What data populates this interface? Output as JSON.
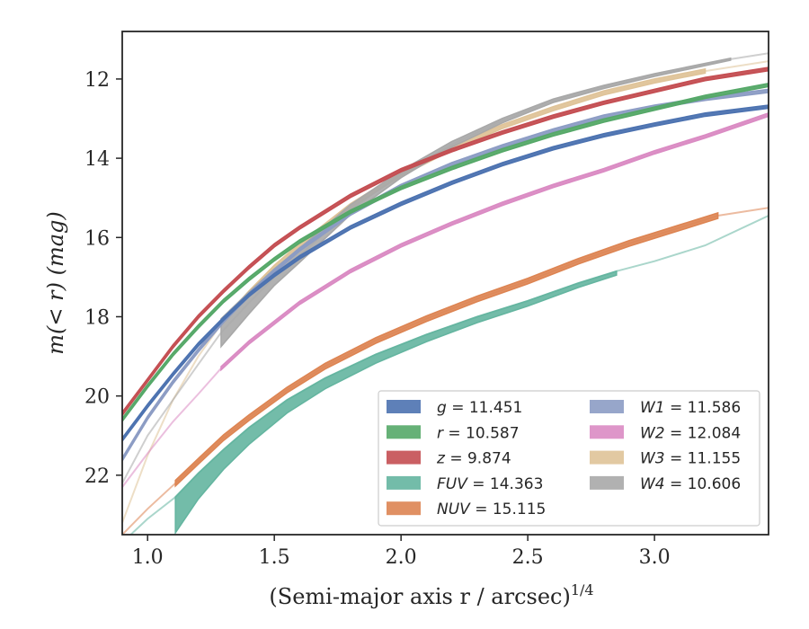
{
  "chart_data": {
    "type": "line",
    "xlabel": "(Semi-major axis r / arcsec)",
    "xlabel_superscript": "1/4",
    "ylabel": "m(< r) (mag)",
    "xlim": [
      0.9,
      3.45
    ],
    "ylim": [
      23.5,
      10.8
    ],
    "y_inverted": true,
    "x_ticks": [
      1.0,
      1.5,
      2.0,
      2.5,
      3.0
    ],
    "x_tick_labels": [
      "1.0",
      "1.5",
      "2.0",
      "2.5",
      "3.0"
    ],
    "y_ticks": [
      12,
      14,
      16,
      18,
      20,
      22
    ],
    "y_tick_labels": [
      "12",
      "14",
      "16",
      "18",
      "20",
      "22"
    ],
    "grid": false,
    "legend_position": "lower-right",
    "series": [
      {
        "label_var": "g",
        "label_value": "11.451",
        "color": "#4c72b0",
        "x": [
          0.9,
          1.0,
          1.1,
          1.2,
          1.3,
          1.4,
          1.5,
          1.6,
          1.8,
          2.0,
          2.2,
          2.4,
          2.6,
          2.8,
          3.0,
          3.2,
          3.45
        ],
        "y": [
          21.1,
          20.25,
          19.45,
          18.7,
          18.05,
          17.45,
          16.95,
          16.5,
          15.75,
          15.15,
          14.62,
          14.15,
          13.75,
          13.42,
          13.15,
          12.9,
          12.7
        ],
        "band": 0.04,
        "solid_x": [
          0.9,
          3.45
        ]
      },
      {
        "label_var": "r",
        "label_value": "10.587",
        "color": "#55a868",
        "x": [
          0.9,
          1.0,
          1.1,
          1.2,
          1.3,
          1.4,
          1.5,
          1.6,
          1.8,
          2.0,
          2.2,
          2.4,
          2.6,
          2.8,
          3.0,
          3.2,
          3.45
        ],
        "y": [
          20.6,
          19.75,
          18.95,
          18.25,
          17.6,
          17.05,
          16.55,
          16.1,
          15.35,
          14.75,
          14.25,
          13.8,
          13.4,
          13.05,
          12.75,
          12.45,
          12.15
        ],
        "band": 0.04,
        "solid_x": [
          0.9,
          3.45
        ]
      },
      {
        "label_var": "z",
        "label_value": "9.874",
        "color": "#c44e52",
        "x": [
          0.9,
          1.0,
          1.1,
          1.2,
          1.3,
          1.4,
          1.5,
          1.6,
          1.8,
          2.0,
          2.2,
          2.4,
          2.6,
          2.8,
          3.0,
          3.2,
          3.45
        ],
        "y": [
          20.45,
          19.6,
          18.75,
          18.0,
          17.35,
          16.75,
          16.2,
          15.75,
          14.95,
          14.3,
          13.8,
          13.35,
          12.95,
          12.6,
          12.3,
          12.0,
          11.75
        ],
        "band": 0.04,
        "solid_x": [
          0.9,
          3.45
        ]
      },
      {
        "label_var": "FUV",
        "label_value": "14.363",
        "color": "#64b5a0",
        "x": [
          0.9,
          1.0,
          1.11,
          1.2,
          1.3,
          1.4,
          1.55,
          1.7,
          1.9,
          2.1,
          2.3,
          2.5,
          2.7,
          2.85,
          3.0,
          3.2,
          3.45
        ],
        "y": [
          23.7,
          23.1,
          22.55,
          21.95,
          21.35,
          20.8,
          20.1,
          19.55,
          18.95,
          18.45,
          18.0,
          17.6,
          17.15,
          16.85,
          16.6,
          16.2,
          15.45
        ],
        "band_lo": [
          0.0,
          0.0,
          0.9,
          0.65,
          0.5,
          0.42,
          0.33,
          0.27,
          0.22,
          0.18,
          0.15,
          0.13,
          0.11,
          0.1,
          0.0,
          0.0,
          0.0
        ],
        "solid_x": [
          1.11,
          2.85
        ]
      },
      {
        "label_var": "NUV",
        "label_value": "15.115",
        "color": "#dd8452",
        "x": [
          0.9,
          1.0,
          1.11,
          1.2,
          1.3,
          1.4,
          1.55,
          1.7,
          1.9,
          2.1,
          2.3,
          2.5,
          2.7,
          2.9,
          3.1,
          3.25,
          3.45
        ],
        "y": [
          23.5,
          22.85,
          22.2,
          21.65,
          21.05,
          20.55,
          19.85,
          19.25,
          18.6,
          18.05,
          17.55,
          17.1,
          16.6,
          16.15,
          15.75,
          15.45,
          15.25
        ],
        "band": 0.07,
        "solid_x": [
          1.11,
          3.25
        ]
      },
      {
        "label_var": "W1",
        "label_value": "11.586",
        "color": "#8c9cc4",
        "x": [
          0.9,
          1.0,
          1.1,
          1.2,
          1.3,
          1.4,
          1.5,
          1.6,
          1.8,
          2.0,
          2.2,
          2.4,
          2.6,
          2.8,
          3.0,
          3.2,
          3.45
        ],
        "y": [
          21.6,
          20.55,
          19.65,
          18.85,
          18.1,
          17.45,
          16.85,
          16.3,
          15.4,
          14.7,
          14.15,
          13.7,
          13.3,
          12.95,
          12.7,
          12.5,
          12.3
        ],
        "band": 0.04,
        "solid_x": [
          0.9,
          3.45
        ]
      },
      {
        "label_var": "W2",
        "label_value": "12.084",
        "color": "#da8bc3",
        "x": [
          0.9,
          1.0,
          1.1,
          1.2,
          1.29,
          1.4,
          1.5,
          1.6,
          1.8,
          2.0,
          2.2,
          2.4,
          2.6,
          2.8,
          3.0,
          3.2,
          3.45
        ],
        "y": [
          22.3,
          21.45,
          20.65,
          19.95,
          19.3,
          18.65,
          18.15,
          17.65,
          16.85,
          16.2,
          15.65,
          15.15,
          14.7,
          14.3,
          13.85,
          13.45,
          12.9
        ],
        "band": 0.04,
        "solid_x": [
          1.29,
          3.45
        ]
      },
      {
        "label_var": "W3",
        "label_value": "11.155",
        "color": "#dfc398",
        "x": [
          0.9,
          1.0,
          1.1,
          1.2,
          1.3,
          1.4,
          1.5,
          1.6,
          1.8,
          2.0,
          2.2,
          2.4,
          2.6,
          2.8,
          3.0,
          3.2,
          3.45
        ],
        "y": [
          23.2,
          21.5,
          20.1,
          19.0,
          18.1,
          17.4,
          16.75,
          16.2,
          15.2,
          14.4,
          13.75,
          13.2,
          12.75,
          12.35,
          12.05,
          11.8,
          11.55
        ],
        "band": 0.05,
        "solid_x": [
          1.29,
          3.3
        ]
      },
      {
        "label_var": "W4",
        "label_value": "10.606",
        "color": "#a8a8a8",
        "x": [
          0.9,
          1.0,
          1.1,
          1.2,
          1.29,
          1.4,
          1.5,
          1.6,
          1.8,
          2.0,
          2.2,
          2.4,
          2.6,
          2.8,
          3.0,
          3.3,
          3.45
        ],
        "y": [
          22.2,
          21.0,
          20.1,
          19.2,
          18.4,
          17.65,
          17.0,
          16.45,
          15.3,
          14.4,
          13.65,
          13.05,
          12.55,
          12.2,
          11.9,
          11.5,
          11.35
        ],
        "band_w": [
          0.0,
          0.0,
          0.0,
          0.0,
          0.7,
          0.55,
          0.42,
          0.35,
          0.25,
          0.18,
          0.14,
          0.11,
          0.09,
          0.08,
          0.07,
          0.05,
          0.0
        ],
        "solid_x": [
          1.29,
          3.3
        ]
      }
    ]
  }
}
